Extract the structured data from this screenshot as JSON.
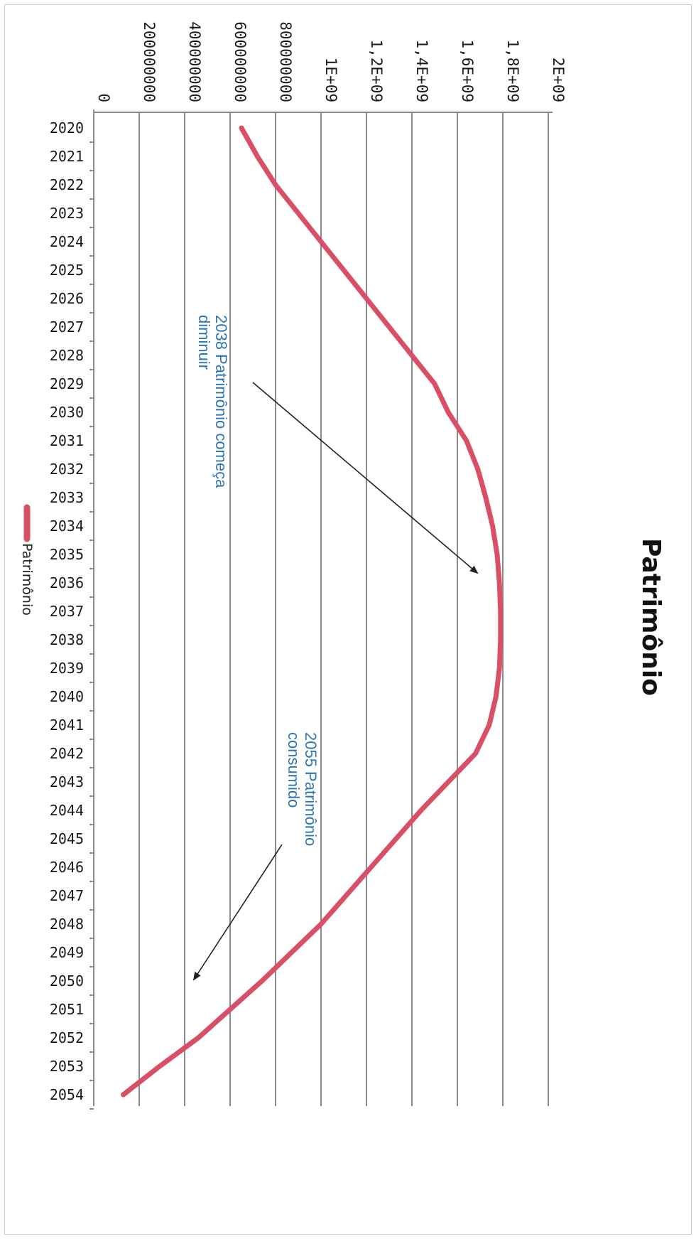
{
  "chart_data": {
    "type": "line",
    "title": "Patrimônio",
    "orientation": "rotated 90° clockwise (years run top-to-bottom, values increase to the right)",
    "x": [
      2020,
      2021,
      2022,
      2023,
      2024,
      2025,
      2026,
      2027,
      2028,
      2029,
      2030,
      2031,
      2032,
      2033,
      2034,
      2035,
      2036,
      2037,
      2038,
      2039,
      2040,
      2041,
      2042,
      2043,
      2044,
      2045,
      2046,
      2047,
      2048,
      2049,
      2050,
      2051,
      2052,
      2053,
      2054
    ],
    "x_tick_labels": [
      "2020",
      "2021",
      "2022",
      "2023",
      "2024",
      "2025",
      "2026",
      "2027",
      "2028",
      "2029",
      "2030",
      "2031",
      "2032",
      "2033",
      "2034",
      "2035",
      "2036",
      "2037",
      "2038",
      "2039",
      "2040",
      "2041",
      "2042",
      "2043",
      "2044",
      "2045",
      "2046",
      "2047",
      "2048",
      "2049",
      "2050",
      "2051",
      "2052",
      "2053",
      "2054"
    ],
    "series": [
      {
        "name": "Patrimônio",
        "color": "#d94f66",
        "values": [
          650000000,
          720000000,
          800000000,
          900000000,
          1000000000,
          1100000000,
          1200000000,
          1300000000,
          1400000000,
          1500000000,
          1560000000,
          1640000000,
          1690000000,
          1725000000,
          1755000000,
          1775000000,
          1785000000,
          1790000000,
          1790000000,
          1785000000,
          1770000000,
          1740000000,
          1680000000,
          1560000000,
          1440000000,
          1330000000,
          1220000000,
          1110000000,
          1000000000,
          870000000,
          740000000,
          600000000,
          460000000,
          290000000,
          130000000
        ]
      }
    ],
    "ylim": [
      0,
      2000000000
    ],
    "y_ticks": [
      0,
      200000000,
      400000000,
      600000000,
      800000000,
      1000000000,
      1200000000,
      1400000000,
      1600000000,
      1800000000,
      2000000000
    ],
    "y_tick_labels": [
      "0",
      "200000000",
      "400000000",
      "600000000",
      "800000000",
      "1E+09",
      "1,2E+09",
      "1,4E+09",
      "1,6E+09",
      "1,8E+09",
      "2E+09"
    ],
    "xlabel": "",
    "ylabel": "",
    "grid": true,
    "legend_position": "bottom",
    "annotations": [
      {
        "text_lines": [
          "2038 Patrimônio começa",
          "diminuir"
        ]
      },
      {
        "text_lines": [
          "2055 Patrimônio",
          "consumido"
        ]
      }
    ],
    "axis_color": "#8c8c8c",
    "annotation_color": "#2e75b6"
  }
}
